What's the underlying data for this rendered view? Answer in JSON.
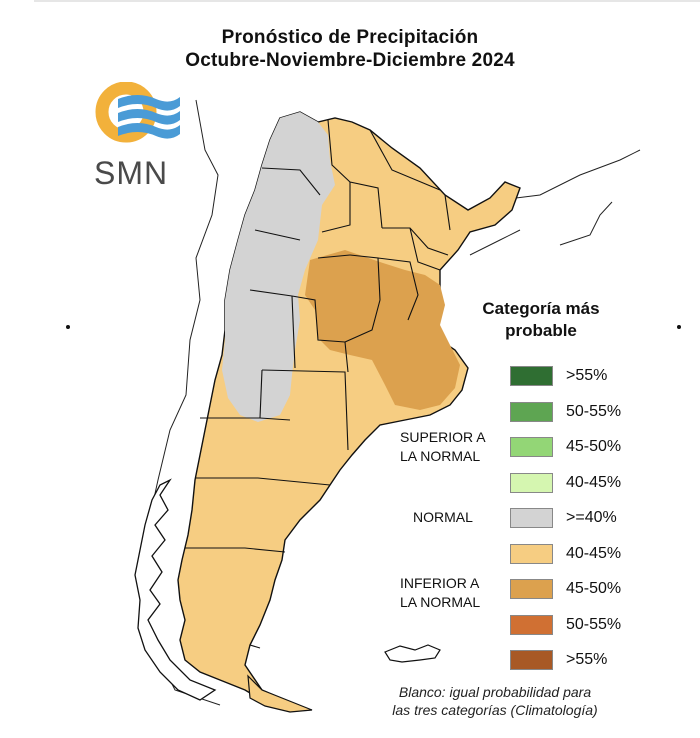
{
  "title": {
    "line1": "Pronóstico de Precipitación",
    "line2": "Octubre-Noviembre-Diciembre 2024"
  },
  "logo": {
    "text": "SMN",
    "colors": {
      "sun": "#f2b13b",
      "bands": "#4a9bd6"
    }
  },
  "legend": {
    "title_line1": "Categoría más",
    "title_line2": "probable",
    "groups": {
      "superior_line1": "SUPERIOR A",
      "superior_line2": "LA NORMAL",
      "normal": "NORMAL",
      "inferior_line1": "INFERIOR A",
      "inferior_line2": "LA NORMAL"
    },
    "items": [
      {
        "label": ">55%",
        "color": "#2f6e32"
      },
      {
        "label": "50-55%",
        "color": "#5ea552"
      },
      {
        "label": "45-50%",
        "color": "#93d676"
      },
      {
        "label": "40-45%",
        "color": "#d5f6b0"
      },
      {
        "label": ">=40%",
        "color": "#d3d3d3"
      },
      {
        "label": "40-45%",
        "color": "#f6cd82"
      },
      {
        "label": "45-50%",
        "color": "#dca14e"
      },
      {
        "label": "50-55%",
        "color": "#d07033"
      },
      {
        "label": ">55%",
        "color": "#a85925"
      }
    ]
  },
  "note": {
    "line1": "Blanco: igual probabilidad para",
    "line2": "las tres categorías (Climatología)"
  },
  "map_colors": {
    "normal": "#d3d3d3",
    "below_40_45": "#f6cd82",
    "below_45_50": "#dca14e",
    "border": "#111111"
  }
}
